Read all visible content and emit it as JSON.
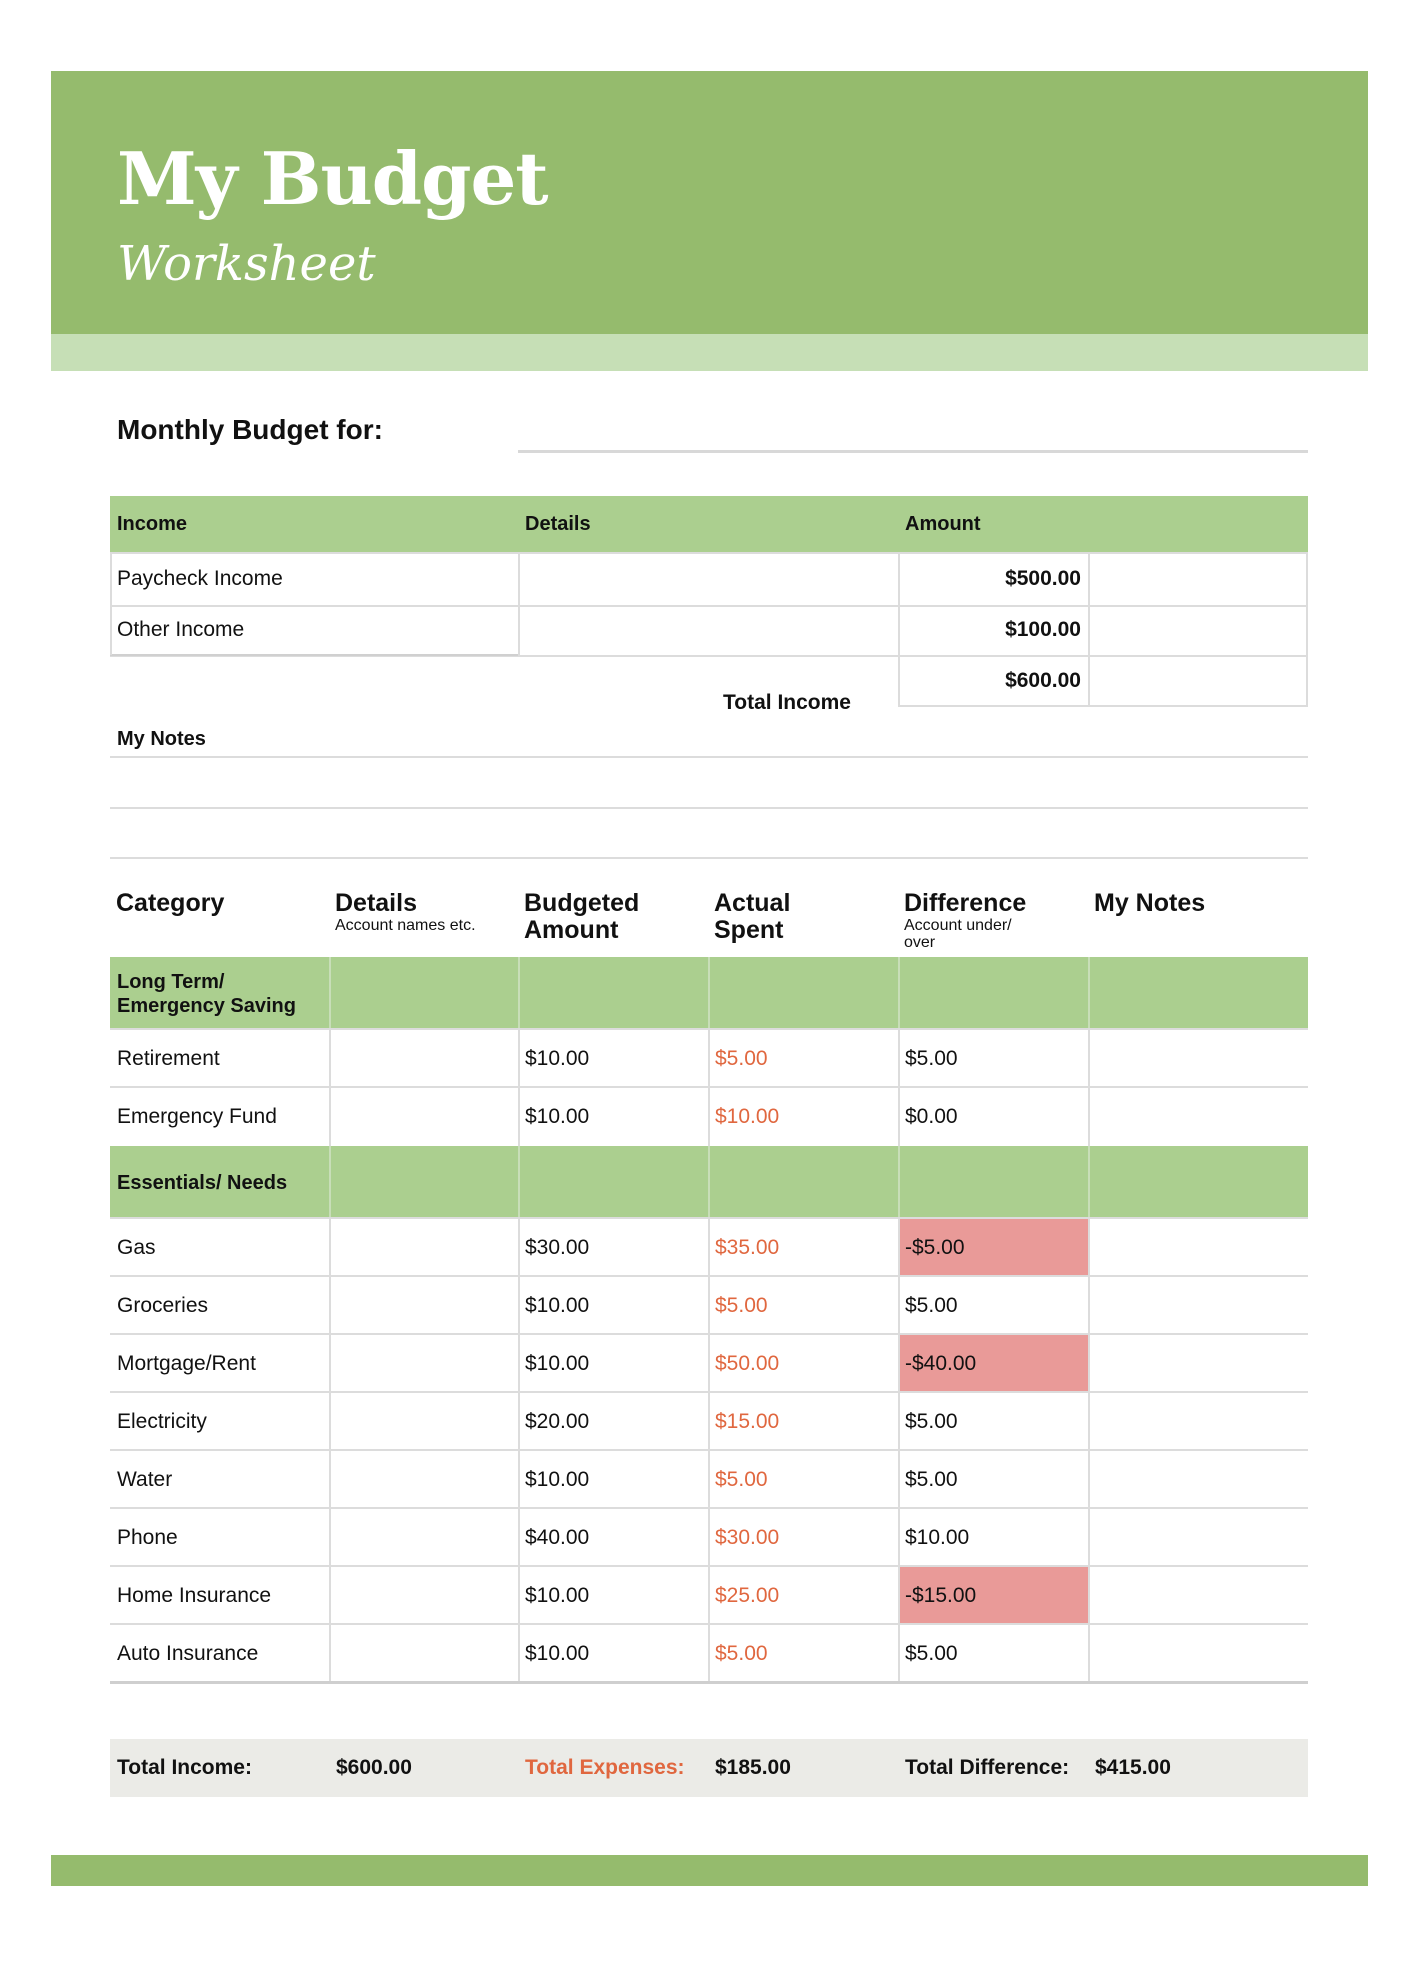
{
  "header": {
    "title": "My Budget",
    "subtitle": "Worksheet"
  },
  "monthly_label": "Monthly Budget for:",
  "income_table": {
    "headers": [
      "Income",
      "Details",
      "Amount"
    ],
    "rows": [
      {
        "label": "Paycheck Income",
        "amount": "$500.00"
      },
      {
        "label": "Other Income",
        "amount": "$100.00"
      }
    ],
    "total_label": "Total Income",
    "total_amount": "$600.00"
  },
  "notes_label": "My Notes",
  "budget_table": {
    "headers": [
      {
        "title": "Category",
        "sub": ""
      },
      {
        "title": "Details",
        "sub": "Account names etc."
      },
      {
        "title": "Budgeted Amount",
        "sub": ""
      },
      {
        "title": "Actual Spent",
        "sub": ""
      },
      {
        "title": "Difference",
        "sub": "Account under/ over"
      },
      {
        "title": "My Notes",
        "sub": ""
      }
    ],
    "groups": [
      {
        "name": "Long Term/ Emergency Saving",
        "rows": [
          {
            "category": "Retirement",
            "budgeted": "$10.00",
            "actual": "$5.00",
            "difference": "$5.00",
            "negative": false
          },
          {
            "category": "Emergency Fund",
            "budgeted": "$10.00",
            "actual": "$10.00",
            "difference": "$0.00",
            "negative": false
          }
        ]
      },
      {
        "name": "Essentials/ Needs",
        "rows": [
          {
            "category": "Gas",
            "budgeted": "$30.00",
            "actual": "$35.00",
            "difference": "-$5.00",
            "negative": true
          },
          {
            "category": "Groceries",
            "budgeted": "$10.00",
            "actual": "$5.00",
            "difference": "$5.00",
            "negative": false
          },
          {
            "category": "Mortgage/Rent",
            "budgeted": "$10.00",
            "actual": "$50.00",
            "difference": "-$40.00",
            "negative": true
          },
          {
            "category": "Electricity",
            "budgeted": "$20.00",
            "actual": "$15.00",
            "difference": "$5.00",
            "negative": false
          },
          {
            "category": "Water",
            "budgeted": "$10.00",
            "actual": "$5.00",
            "difference": "$5.00",
            "negative": false
          },
          {
            "category": "Phone",
            "budgeted": "$40.00",
            "actual": "$30.00",
            "difference": "$10.00",
            "negative": false
          },
          {
            "category": "Home Insurance",
            "budgeted": "$10.00",
            "actual": "$25.00",
            "difference": "-$15.00",
            "negative": true
          },
          {
            "category": "Auto Insurance",
            "budgeted": "$10.00",
            "actual": "$5.00",
            "difference": "$5.00",
            "negative": false
          }
        ]
      }
    ]
  },
  "totals": {
    "income_label": "Total Income:",
    "income_value": "$600.00",
    "expenses_label": "Total Expenses:",
    "expenses_value": "$185.00",
    "difference_label": "Total Difference:",
    "difference_value": "$415.00"
  },
  "colors": {
    "header_green": "#95bb6d",
    "light_green": "#c6dfb6",
    "table_green": "#abcf8f",
    "negative_red": "#e99a98",
    "actual_orange": "#e0673f",
    "totals_bg": "#ebebe7"
  }
}
